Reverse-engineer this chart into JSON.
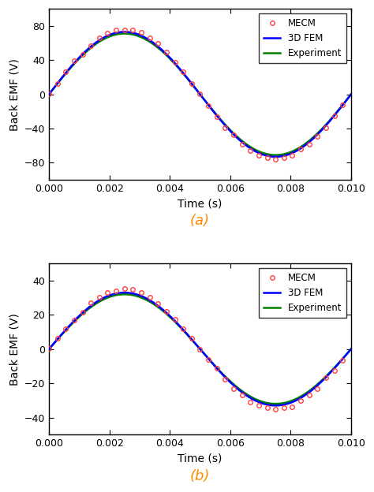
{
  "subplot_a": {
    "amplitude_fem": 73,
    "amplitude_exp": 71,
    "amplitude_mecm": 76,
    "ylabel": "Back EMF (V)",
    "xlabel": "Time (s)",
    "label": "(a)",
    "ylim": [
      -100,
      100
    ],
    "yticks": [
      -80,
      -40,
      0,
      40,
      80
    ],
    "xlim": [
      0.0,
      0.01
    ],
    "xticks": [
      0.0,
      0.002,
      0.004,
      0.006,
      0.008,
      0.01
    ]
  },
  "subplot_b": {
    "amplitude_fem": 33,
    "amplitude_exp": 32,
    "amplitude_mecm": 35,
    "ylabel": "Back EMF (V)",
    "xlabel": "Time (s)",
    "label": "(b)",
    "ylim": [
      -50,
      50
    ],
    "yticks": [
      -40,
      -20,
      0,
      20,
      40
    ],
    "xlim": [
      0.0,
      0.01
    ],
    "xticks": [
      0.0,
      0.002,
      0.004,
      0.006,
      0.008,
      0.01
    ]
  },
  "period": 0.01,
  "n_smooth": 500,
  "n_mecm": 36,
  "fem_color": "#0000FF",
  "exp_color": "#008000",
  "mecm_color": "#FF4040",
  "fem_linewidth": 1.8,
  "exp_linewidth": 1.8,
  "mecm_markersize": 4.0,
  "legend_fontsize": 8.5,
  "axis_label_fontsize": 10,
  "tick_label_fontsize": 9,
  "sublabel_fontsize": 13,
  "sublabel_color": "#FF8C00"
}
